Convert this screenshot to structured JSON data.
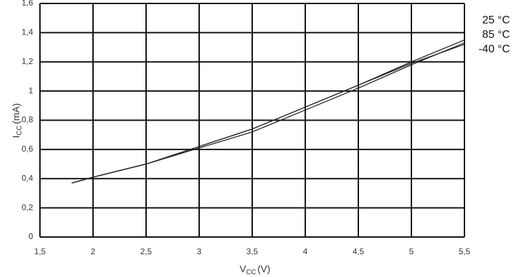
{
  "chart_data": {
    "type": "line",
    "x_label": {
      "main": "V",
      "sub": "CC",
      "unit": "(V)"
    },
    "y_label": {
      "main": "I",
      "sub": "CC",
      "unit": "(mA)"
    },
    "x": [
      1.8,
      2,
      2.5,
      3,
      3.5,
      4,
      4.5,
      5,
      5.5
    ],
    "series": [
      {
        "name": "25 °C",
        "color": "#222222",
        "values": [
          0.37,
          0.41,
          0.5,
          0.62,
          0.74,
          0.89,
          1.04,
          1.2,
          1.35
        ]
      },
      {
        "name": "85 °C",
        "color": "#222222",
        "values": [
          0.37,
          0.41,
          0.5,
          0.61,
          0.72,
          0.87,
          1.02,
          1.18,
          1.33
        ]
      },
      {
        "name": "-40 °C",
        "color": "#222222",
        "values": [
          0.37,
          0.41,
          0.5,
          0.62,
          0.74,
          0.89,
          1.04,
          1.19,
          1.32
        ]
      }
    ],
    "xlim": [
      1.5,
      5.5
    ],
    "xticks": [
      {
        "value": 1.5,
        "label": "1,5"
      },
      2,
      {
        "value": 2.5,
        "label": "2,5"
      },
      3,
      {
        "value": 3.5,
        "label": "3,5"
      },
      4,
      {
        "value": 4.5,
        "label": "4,5"
      },
      5,
      {
        "value": 5.5,
        "label": "5,5"
      }
    ],
    "ylim": [
      0,
      1.6
    ],
    "yticks": [
      0,
      {
        "value": 0.2,
        "label": "0,2"
      },
      {
        "value": 0.4,
        "label": "0,4"
      },
      {
        "value": 0.6,
        "label": "0,6"
      },
      {
        "value": 0.8,
        "label": "0,8"
      },
      1,
      {
        "value": 1.2,
        "label": "1,2"
      },
      {
        "value": 1.4,
        "label": "1,4"
      },
      {
        "value": 1.6,
        "label": "1,6"
      }
    ],
    "grid": true,
    "legend": "right"
  }
}
